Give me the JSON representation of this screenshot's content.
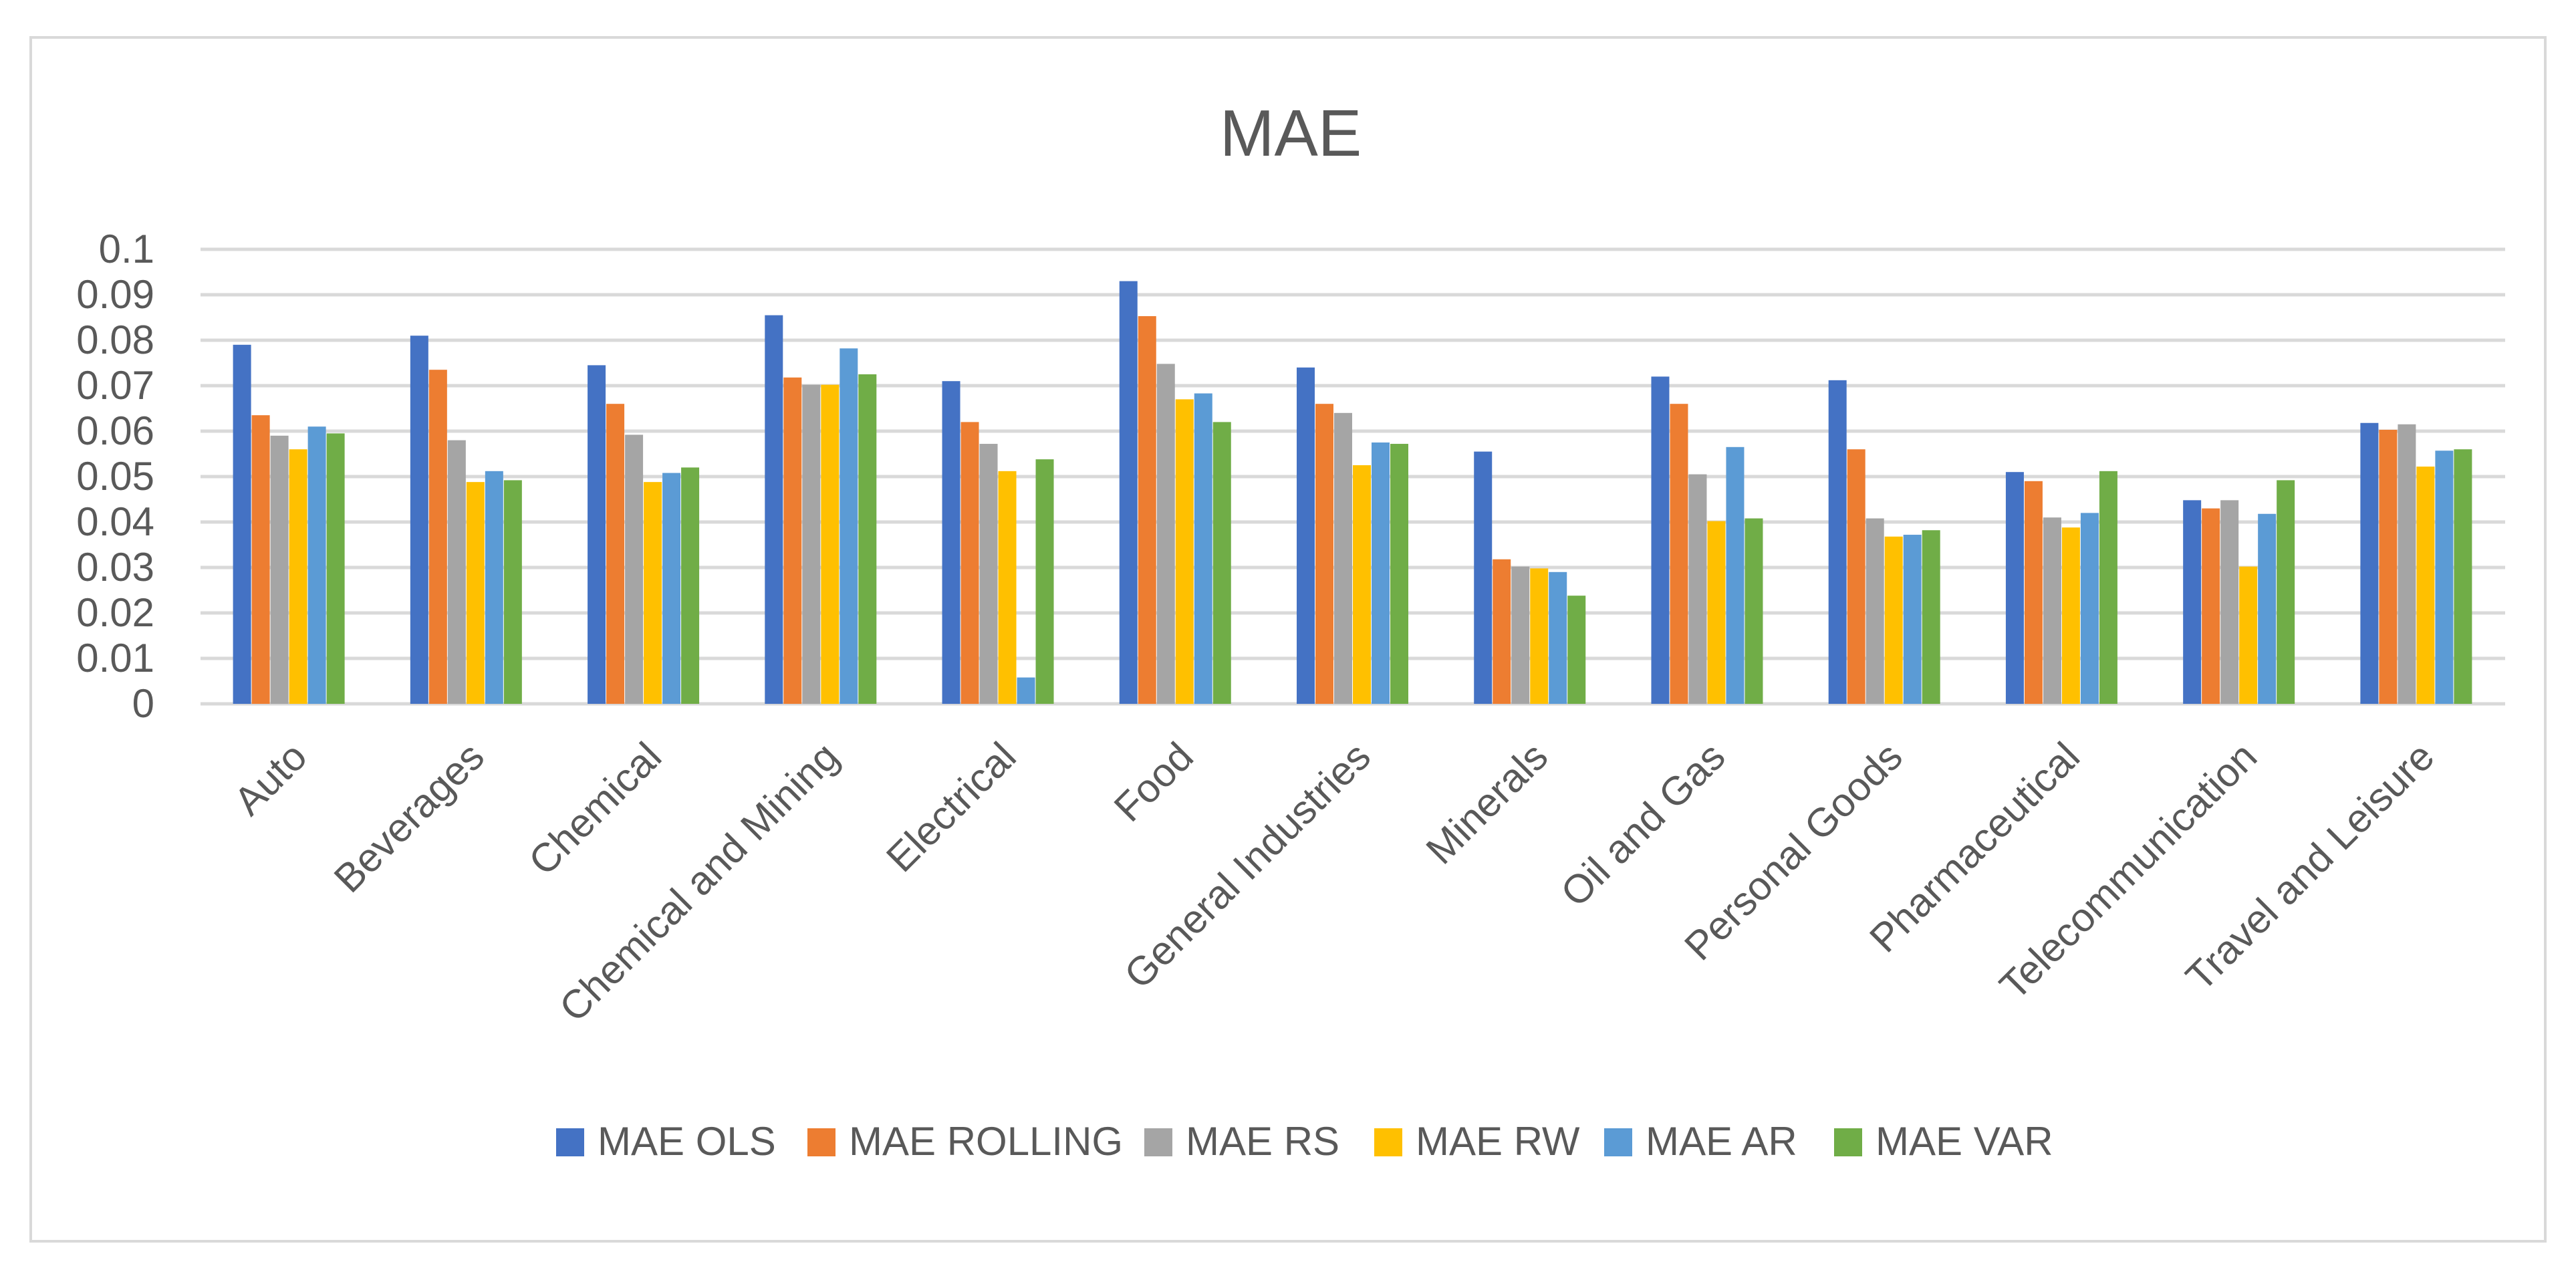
{
  "chart_data": {
    "type": "bar",
    "title": "MAE",
    "xlabel": "",
    "ylabel": "",
    "ylim": [
      0,
      0.1
    ],
    "yticks": [
      "0",
      "0.01",
      "0.02",
      "0.03",
      "0.04",
      "0.05",
      "0.06",
      "0.07",
      "0.08",
      "0.09",
      "0.1"
    ],
    "grid": true,
    "legend_position": "bottom",
    "categories": [
      "Auto",
      "Beverages",
      "Chemical",
      "Chemical and Mining",
      "Electrical",
      "Food",
      "General Industries",
      "Minerals",
      "Oil and Gas",
      "Personal Goods",
      "Pharmaceutical",
      "Telecommunication",
      "Travel and Leisure"
    ],
    "series": [
      {
        "name": "MAE OLS",
        "color": "#4472C4",
        "values": [
          0.079,
          0.081,
          0.0745,
          0.0855,
          0.071,
          0.093,
          0.074,
          0.0555,
          0.072,
          0.0712,
          0.051,
          0.0448,
          0.0618
        ]
      },
      {
        "name": "MAE ROLLING",
        "color": "#ED7D31",
        "values": [
          0.0635,
          0.0735,
          0.066,
          0.0718,
          0.062,
          0.0853,
          0.066,
          0.0318,
          0.066,
          0.056,
          0.049,
          0.043,
          0.0603
        ]
      },
      {
        "name": "MAE RS",
        "color": "#A5A5A5",
        "values": [
          0.059,
          0.058,
          0.0592,
          0.0702,
          0.0572,
          0.0748,
          0.064,
          0.0302,
          0.0505,
          0.0408,
          0.041,
          0.0448,
          0.0615
        ]
      },
      {
        "name": "MAE RW",
        "color": "#FFC000",
        "values": [
          0.056,
          0.0488,
          0.0488,
          0.0702,
          0.0512,
          0.067,
          0.0525,
          0.0298,
          0.0402,
          0.0368,
          0.0388,
          0.0302,
          0.0522
        ]
      },
      {
        "name": "MAE AR",
        "color": "#5B9BD5",
        "values": [
          0.061,
          0.0512,
          0.0508,
          0.0782,
          0.0058,
          0.0683,
          0.0575,
          0.029,
          0.0565,
          0.0372,
          0.042,
          0.0418,
          0.0557
        ]
      },
      {
        "name": "MAE VAR",
        "color": "#70AD47",
        "values": [
          0.0595,
          0.0492,
          0.052,
          0.0725,
          0.0538,
          0.062,
          0.0572,
          0.0238,
          0.0408,
          0.0382,
          0.0512,
          0.0492,
          0.056
        ]
      }
    ]
  }
}
